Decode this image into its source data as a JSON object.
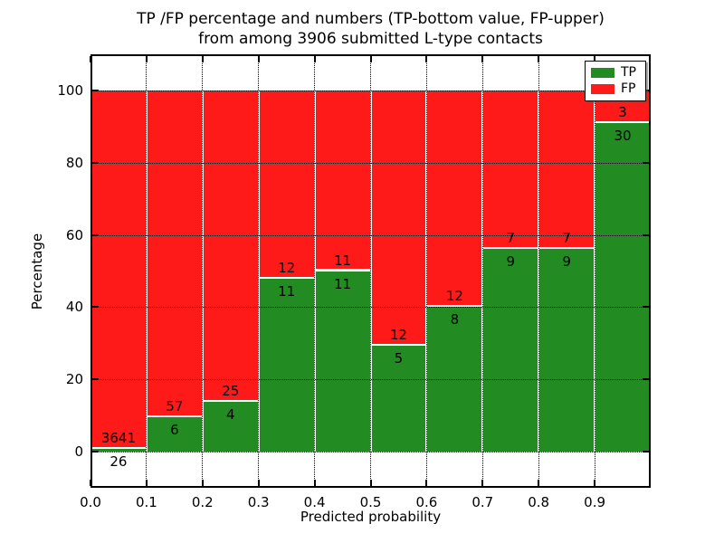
{
  "title": {
    "line1": "TP /FP percentage and numbers (TP-bottom value, FP-upper)",
    "line2": "from among 3906 submitted L-type contacts"
  },
  "legend": {
    "position": "upper right",
    "items": [
      {
        "label": "TP",
        "color": "#228b22"
      },
      {
        "label": "FP",
        "color": "#ff1a1a"
      }
    ]
  },
  "chart_data": {
    "type": "bar",
    "stacked": true,
    "normalized": "percent (each bar totals 100%)",
    "title": "TP /FP percentage and numbers (TP-bottom value, FP-upper) from among 3906 submitted L-type contacts",
    "xlabel": "Predicted probability",
    "ylabel": "Percentage",
    "total_contacts": 3906,
    "bin_edges": [
      0.0,
      0.1,
      0.2,
      0.3,
      0.4,
      0.5,
      0.6,
      0.7,
      0.8,
      0.9,
      1.0
    ],
    "categories": [
      "0.0-0.1",
      "0.1-0.2",
      "0.2-0.3",
      "0.3-0.4",
      "0.4-0.5",
      "0.5-0.6",
      "0.6-0.7",
      "0.7-0.8",
      "0.8-0.9",
      "0.9-1.0"
    ],
    "series": [
      {
        "name": "TP",
        "color": "#228b22",
        "counts": [
          26,
          6,
          4,
          11,
          11,
          5,
          8,
          9,
          9,
          30
        ]
      },
      {
        "name": "FP",
        "color": "#ff1a1a",
        "counts": [
          3641,
          57,
          25,
          12,
          11,
          12,
          12,
          7,
          7,
          3
        ]
      }
    ],
    "tp_percent": [
      0.71,
      9.52,
      13.79,
      47.83,
      50.0,
      29.41,
      40.0,
      56.25,
      56.25,
      90.91
    ],
    "label_rule": "FP count printed above TP/FP boundary, TP count printed below boundary",
    "xlim": [
      0.0,
      1.0
    ],
    "ylim": [
      -10,
      110
    ],
    "xticks": [
      "0.0",
      "0.1",
      "0.2",
      "0.3",
      "0.4",
      "0.5",
      "0.6",
      "0.7",
      "0.8",
      "0.9"
    ],
    "yticks": [
      0,
      20,
      40,
      60,
      80,
      100
    ],
    "grid": "dotted, both axes, drawn over bars",
    "bar_edge_color": "#ffffff"
  }
}
